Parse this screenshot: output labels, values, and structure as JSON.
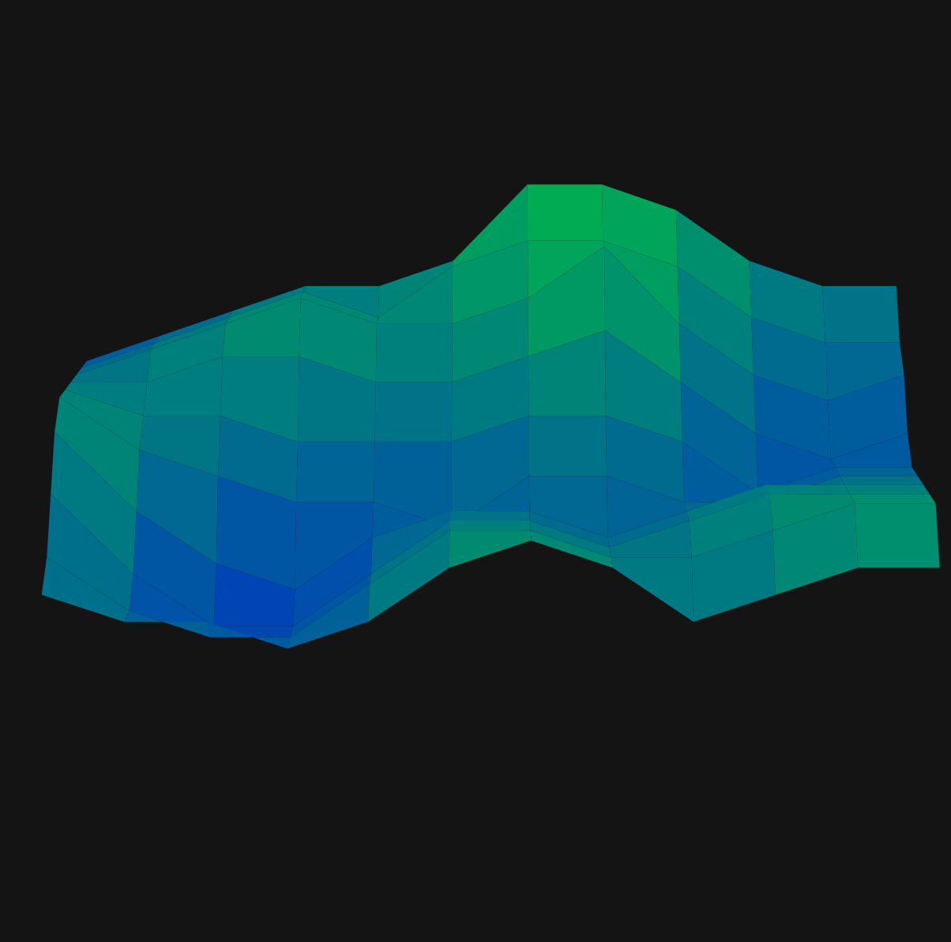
{
  "chart_data": {
    "type": "surface",
    "z": [
      [
        5,
        4,
        4,
        3,
        4,
        6,
        7,
        6,
        4,
        5,
        6,
        6
      ],
      [
        5,
        3,
        2,
        2,
        4,
        6,
        6,
        5,
        5,
        6,
        7,
        7
      ],
      [
        6,
        3,
        1,
        1,
        3,
        5,
        5,
        4,
        5,
        6,
        6,
        6
      ],
      [
        7,
        4,
        2,
        1,
        3,
        4,
        4,
        3,
        4,
        5,
        5,
        5
      ],
      [
        7,
        5,
        4,
        3,
        3,
        2,
        4,
        4,
        3,
        3,
        4,
        4
      ],
      [
        6,
        5,
        5,
        4,
        4,
        4,
        5,
        5,
        4,
        2,
        3,
        3
      ],
      [
        5,
        5,
        6,
        6,
        5,
        5,
        6,
        7,
        5,
        3,
        2,
        3
      ],
      [
        4,
        5,
        6,
        7,
        6,
        6,
        7,
        9,
        6,
        4,
        3,
        4
      ],
      [
        3,
        4,
        5,
        6,
        5,
        7,
        8,
        8,
        7,
        5,
        4,
        4
      ],
      [
        2,
        3,
        4,
        5,
        5,
        6,
        9,
        9,
        8,
        6,
        5,
        5
      ]
    ],
    "zlim": [
      0,
      10
    ],
    "colors": [
      "#0033c4",
      "#00c040"
    ],
    "tick_labels": false,
    "grid": false
  }
}
